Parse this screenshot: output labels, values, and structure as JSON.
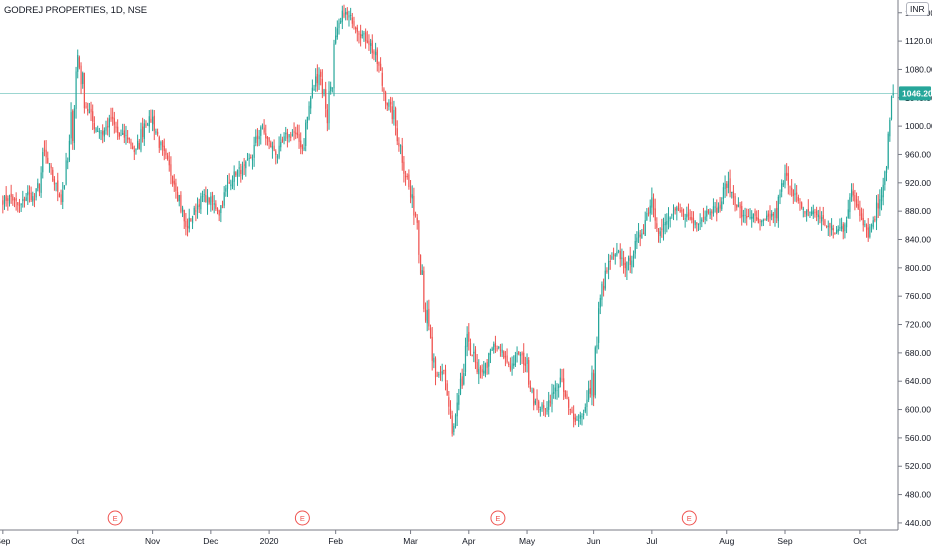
{
  "header": {
    "symbol_title": "GODREJ PROPERTIES, 1D, NSE",
    "currency": "INR"
  },
  "colors": {
    "up": "#26a69a",
    "down": "#ef5350",
    "axis_text": "#131722",
    "axis_line": "#787b86",
    "last_price_line": "#26a69a",
    "earnings_marker": "#ef5350"
  },
  "chart_data": {
    "type": "candlestick",
    "title": "GODREJ PROPERTIES, 1D, NSE",
    "currency": "INR",
    "y_axis": {
      "ticks": [
        440,
        480,
        520,
        560,
        600,
        640,
        680,
        720,
        760,
        800,
        840,
        880,
        920,
        960,
        1000,
        1040,
        1080,
        1120,
        1160
      ],
      "tick_labels": [
        "440.00",
        "480.00",
        "520.00",
        "560.00",
        "600.00",
        "640.00",
        "680.00",
        "720.00",
        "760.00",
        "800.00",
        "840.00",
        "880.00",
        "920.00",
        "960.00",
        "1000.00",
        "1040.00",
        "1080.00",
        "1120.00",
        "1160.00"
      ],
      "range": [
        430,
        1178
      ],
      "position": "right"
    },
    "x_axis": {
      "labels": [
        "Sep",
        "Oct",
        "Nov",
        "Dec",
        "2020",
        "Feb",
        "Mar",
        "Apr",
        "May",
        "Jun",
        "Jul",
        "Aug",
        "Sep",
        "Oct"
      ]
    },
    "last_price": 1046.2,
    "last_price_label": "1046.20",
    "earnings_markers": [
      "E",
      "E",
      "E",
      "E"
    ],
    "grid": false,
    "anchors": [
      [
        "Sep",
        895
      ],
      [
        "",
        900
      ],
      [
        "",
        885
      ],
      [
        "",
        905
      ],
      [
        "",
        895
      ],
      [
        "",
        960
      ],
      [
        "",
        925
      ],
      [
        "",
        900
      ],
      [
        "",
        960
      ],
      [
        "Oct",
        1100
      ],
      [
        "",
        1030
      ],
      [
        "",
        1000
      ],
      [
        "",
        990
      ],
      [
        "",
        1010
      ],
      [
        "",
        985
      ],
      [
        "",
        985
      ],
      [
        "",
        960
      ],
      [
        "",
        1005
      ],
      [
        "Nov",
        1010
      ],
      [
        "",
        970
      ],
      [
        "",
        940
      ],
      [
        "",
        910
      ],
      [
        "",
        855
      ],
      [
        "",
        880
      ],
      [
        "",
        900
      ],
      [
        "Dec",
        895
      ],
      [
        "",
        880
      ],
      [
        "",
        915
      ],
      [
        "",
        935
      ],
      [
        "",
        940
      ],
      [
        "",
        960
      ],
      [
        "",
        1000
      ],
      [
        "2020",
        975
      ],
      [
        "",
        960
      ],
      [
        "",
        985
      ],
      [
        "",
        990
      ],
      [
        "",
        970
      ],
      [
        "",
        1040
      ],
      [
        "",
        1080
      ],
      [
        "",
        1020
      ],
      [
        "Feb",
        1120
      ],
      [
        "",
        1160
      ],
      [
        "",
        1150
      ],
      [
        "",
        1130
      ],
      [
        "",
        1120
      ],
      [
        "",
        1090
      ],
      [
        "",
        1040
      ],
      [
        "",
        1010
      ],
      [
        "",
        960
      ],
      [
        "Mar",
        900
      ],
      [
        "",
        860
      ],
      [
        "",
        720
      ],
      [
        "",
        640
      ],
      [
        "",
        660
      ],
      [
        "",
        560
      ],
      [
        "",
        620
      ],
      [
        "Apr",
        700
      ],
      [
        "",
        650
      ],
      [
        "",
        660
      ],
      [
        "",
        690
      ],
      [
        "",
        680
      ],
      [
        "",
        660
      ],
      [
        "",
        680
      ],
      [
        "May",
        660
      ],
      [
        "",
        610
      ],
      [
        "",
        600
      ],
      [
        "",
        620
      ],
      [
        "",
        640
      ],
      [
        "",
        600
      ],
      [
        "",
        585
      ],
      [
        "",
        600
      ],
      [
        "Jun",
        650
      ],
      [
        "",
        770
      ],
      [
        "",
        810
      ],
      [
        "",
        820
      ],
      [
        "",
        800
      ],
      [
        "",
        830
      ],
      [
        "",
        860
      ],
      [
        "Jul",
        900
      ],
      [
        "",
        850
      ],
      [
        "",
        870
      ],
      [
        "",
        880
      ],
      [
        "",
        875
      ],
      [
        "",
        865
      ],
      [
        "",
        870
      ],
      [
        "",
        885
      ],
      [
        "",
        880
      ],
      [
        "Aug",
        920
      ],
      [
        "",
        895
      ],
      [
        "",
        870
      ],
      [
        "",
        875
      ],
      [
        "",
        860
      ],
      [
        "",
        870
      ],
      [
        "",
        880
      ],
      [
        "Sep",
        930
      ],
      [
        "",
        910
      ],
      [
        "",
        880
      ],
      [
        "",
        880
      ],
      [
        "",
        875
      ],
      [
        "",
        860
      ],
      [
        "",
        850
      ],
      [
        "",
        860
      ],
      [
        "",
        905
      ],
      [
        "Oct",
        880
      ],
      [
        "",
        850
      ],
      [
        "",
        880
      ],
      [
        "",
        940
      ],
      [
        "",
        1046.2
      ]
    ]
  }
}
